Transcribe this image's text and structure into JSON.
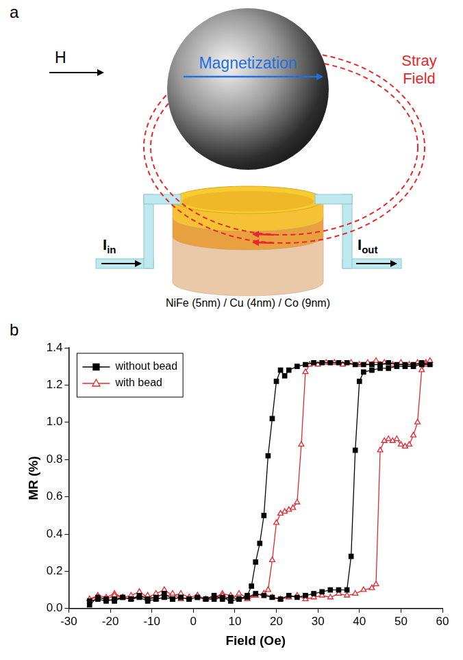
{
  "diagram": {
    "panel_label": "a",
    "field_label": "H",
    "magnetization_label": "Magnetization",
    "stray_field_label": "Stray Field",
    "current_in": {
      "text": "I",
      "subscript": "in"
    },
    "current_out": {
      "text": "I",
      "subscript": "out"
    },
    "stack_label": "NiFe (5nm) / Cu (4nm) / Co (9nm)"
  },
  "chart_data": {
    "panel_label": "b",
    "type": "line",
    "x_label": "Field (Oe)",
    "y_label": "MR (%)",
    "xlim": [
      -30,
      60
    ],
    "xticks": [
      -30,
      -20,
      -10,
      0,
      10,
      20,
      30,
      40,
      50,
      60
    ],
    "ylim": [
      0,
      1.4
    ],
    "yticks": [
      {
        "value": 0,
        "label": "0.0"
      },
      0.2,
      0.4,
      0.6,
      0.8,
      {
        "value": 1,
        "label": "1.0"
      },
      1.2,
      1.4
    ],
    "grid": false,
    "legend": "upper left",
    "series": [
      {
        "name": "without bead",
        "color": "#000000",
        "marker": "square",
        "line_style": "solid",
        "x": [
          -25,
          -23,
          -21,
          -19,
          -17,
          -15,
          -13,
          -11,
          -9,
          -7,
          -5,
          -3,
          -1,
          1,
          3,
          5,
          7,
          9,
          11,
          13,
          15,
          17,
          19,
          21,
          23,
          25,
          27,
          29,
          31,
          33,
          35,
          37,
          38,
          39,
          40,
          41,
          43,
          45,
          47,
          49,
          51,
          53,
          55,
          57,
          55,
          53,
          51,
          49,
          47,
          45,
          43,
          41,
          39,
          37,
          35,
          33,
          31,
          29,
          27,
          25,
          23,
          22,
          21,
          20,
          19,
          18,
          17,
          16,
          15,
          14,
          13,
          11,
          9,
          7,
          5,
          3,
          1,
          -1,
          -3,
          -5,
          -7,
          -9,
          -11,
          -13,
          -15,
          -17,
          -19,
          -21,
          -23,
          -25
        ],
        "values": [
          0.02,
          0.06,
          0.05,
          0.04,
          0.06,
          0.05,
          0.07,
          0.05,
          0.06,
          0.08,
          0.05,
          0.06,
          0.05,
          0.06,
          0.05,
          0.05,
          0.06,
          0.04,
          0.05,
          0.06,
          0.08,
          0.07,
          0.06,
          0.05,
          0.07,
          0.06,
          0.07,
          0.08,
          0.09,
          0.1,
          0.1,
          0.1,
          0.28,
          0.85,
          1.22,
          1.27,
          1.28,
          1.29,
          1.29,
          1.3,
          1.3,
          1.3,
          1.31,
          1.31,
          1.32,
          1.31,
          1.31,
          1.31,
          1.32,
          1.31,
          1.31,
          1.31,
          1.31,
          1.32,
          1.32,
          1.32,
          1.32,
          1.32,
          1.31,
          1.3,
          1.28,
          1.25,
          1.28,
          1.22,
          1.02,
          0.82,
          0.5,
          0.35,
          0.25,
          0.12,
          0.07,
          0.05,
          0.06,
          0.05,
          0.07,
          0.05,
          0.06,
          0.05,
          0.06,
          0.05,
          0.06,
          0.05,
          0.04,
          0.06,
          0.05,
          0.06,
          0.05,
          0.04,
          0.05,
          0.04
        ]
      },
      {
        "name": "with bead",
        "color": "#e8262a",
        "marker": "open triangle",
        "line_style": "solid",
        "x": [
          -25,
          -23,
          -21,
          -19,
          -17,
          -15,
          -13,
          -11,
          -9,
          -7,
          -5,
          -3,
          -1,
          1,
          3,
          5,
          7,
          9,
          11,
          13,
          15,
          17,
          19,
          21,
          23,
          25,
          27,
          29,
          31,
          33,
          35,
          37,
          39,
          41,
          43,
          44,
          45,
          46,
          47,
          48,
          49,
          50,
          51,
          52,
          53,
          54,
          55,
          56,
          57,
          56,
          54,
          52,
          50,
          48,
          46,
          44,
          42,
          40,
          38,
          36,
          34,
          32,
          30,
          28,
          27,
          26,
          25,
          24,
          23,
          22,
          21,
          20,
          19,
          18,
          17,
          15,
          13,
          11,
          9,
          7,
          5,
          3,
          1,
          -1,
          -3,
          -5,
          -7,
          -9,
          -11,
          -13,
          -15,
          -17,
          -19,
          -21,
          -23,
          -25
        ],
        "values": [
          0.05,
          0.07,
          0.06,
          0.08,
          0.06,
          0.07,
          0.09,
          0.06,
          0.08,
          0.1,
          0.07,
          0.08,
          0.06,
          0.07,
          0.05,
          0.06,
          0.08,
          0.07,
          0.06,
          0.05,
          0.07,
          0.08,
          0.06,
          0.05,
          0.06,
          0.07,
          0.05,
          0.06,
          0.07,
          0.06,
          0.08,
          0.07,
          0.08,
          0.1,
          0.11,
          0.13,
          0.85,
          0.9,
          0.91,
          0.9,
          0.91,
          0.88,
          0.87,
          0.88,
          0.93,
          1.0,
          1.28,
          1.32,
          1.33,
          1.31,
          1.32,
          1.31,
          1.32,
          1.31,
          1.32,
          1.33,
          1.32,
          1.31,
          1.32,
          1.31,
          1.32,
          1.32,
          1.31,
          1.31,
          1.27,
          0.88,
          0.57,
          0.54,
          0.53,
          0.52,
          0.51,
          0.46,
          0.26,
          0.1,
          0.08,
          0.07,
          0.06,
          0.08,
          0.05,
          0.07,
          0.06,
          0.05,
          0.07,
          0.06,
          0.05,
          0.08,
          0.06,
          0.05,
          0.07,
          0.06,
          0.05,
          0.06,
          0.07,
          0.05,
          0.06,
          0.05
        ]
      }
    ]
  }
}
